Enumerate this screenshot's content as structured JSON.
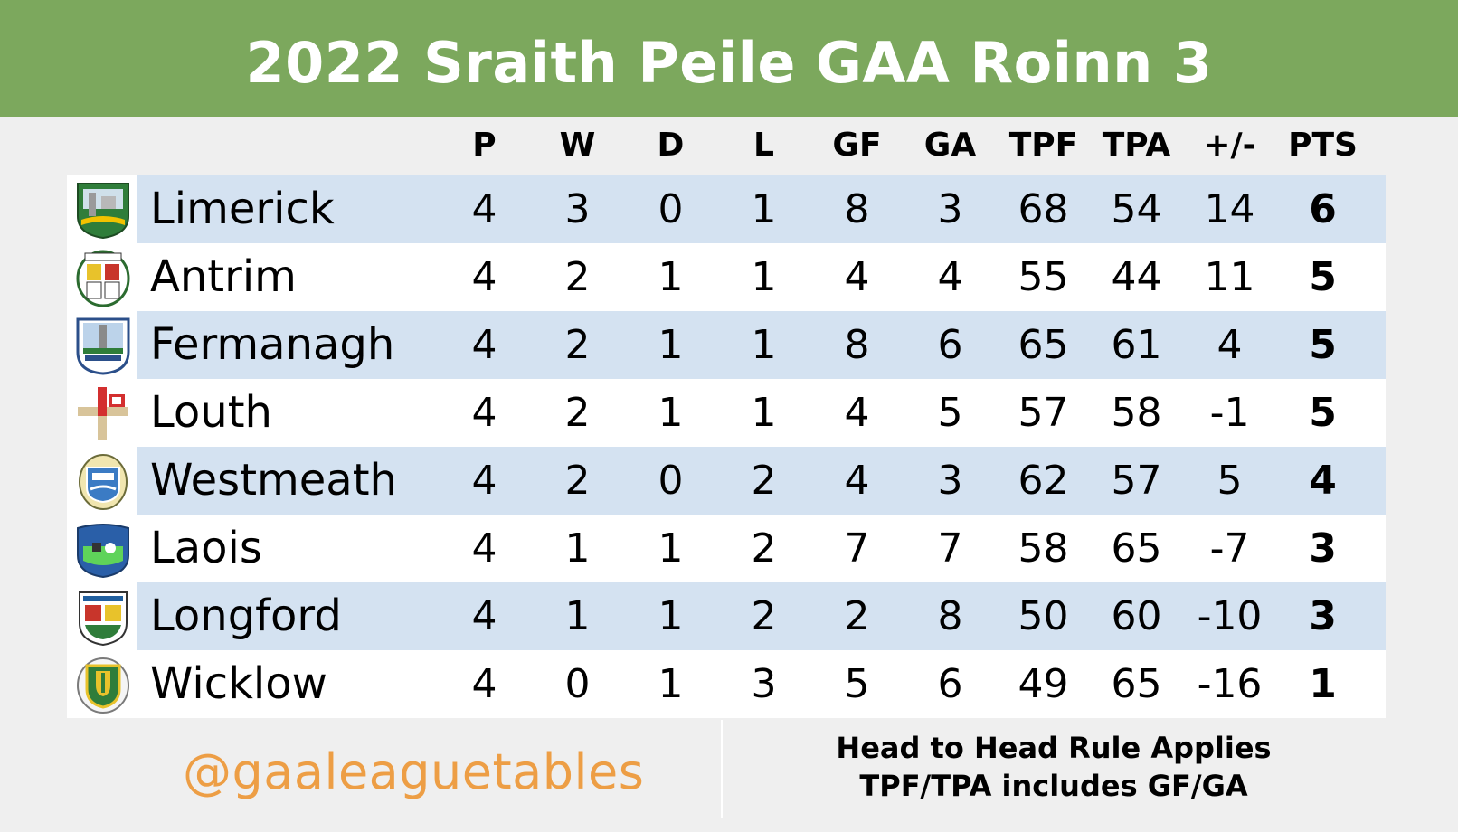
{
  "title": "2022 Sraith Peile GAA Roinn 3",
  "columns": [
    "P",
    "W",
    "D",
    "L",
    "GF",
    "GA",
    "TPF",
    "TPA",
    "+/-",
    "PTS"
  ],
  "rows": [
    {
      "team": "Limerick",
      "crest": "limerick-crest-icon",
      "stats": [
        "4",
        "3",
        "0",
        "1",
        "8",
        "3",
        "68",
        "54",
        "14",
        "6"
      ]
    },
    {
      "team": "Antrim",
      "crest": "antrim-crest-icon",
      "stats": [
        "4",
        "2",
        "1",
        "1",
        "4",
        "4",
        "55",
        "44",
        "11",
        "5"
      ]
    },
    {
      "team": "Fermanagh",
      "crest": "fermanagh-crest-icon",
      "stats": [
        "4",
        "2",
        "1",
        "1",
        "8",
        "6",
        "65",
        "61",
        "4",
        "5"
      ]
    },
    {
      "team": "Louth",
      "crest": "louth-crest-icon",
      "stats": [
        "4",
        "2",
        "1",
        "1",
        "4",
        "5",
        "57",
        "58",
        "-1",
        "5"
      ]
    },
    {
      "team": "Westmeath",
      "crest": "westmeath-crest-icon",
      "stats": [
        "4",
        "2",
        "0",
        "2",
        "4",
        "3",
        "62",
        "57",
        "5",
        "4"
      ]
    },
    {
      "team": "Laois",
      "crest": "laois-crest-icon",
      "stats": [
        "4",
        "1",
        "1",
        "2",
        "7",
        "7",
        "58",
        "65",
        "-7",
        "3"
      ]
    },
    {
      "team": "Longford",
      "crest": "longford-crest-icon",
      "stats": [
        "4",
        "1",
        "1",
        "2",
        "2",
        "8",
        "50",
        "60",
        "-10",
        "3"
      ]
    },
    {
      "team": "Wicklow",
      "crest": "wicklow-crest-icon",
      "stats": [
        "4",
        "0",
        "1",
        "3",
        "5",
        "6",
        "49",
        "65",
        "-16",
        "1"
      ]
    }
  ],
  "footer": {
    "handle": "@gaaleaguetables",
    "note_line1": "Head to Head Rule Applies",
    "note_line2": "TPF/TPA includes GF/GA"
  },
  "colors": {
    "title_bar": "#7ca85d",
    "stripe": "#d4e2f1",
    "handle": "#ed9e45"
  }
}
